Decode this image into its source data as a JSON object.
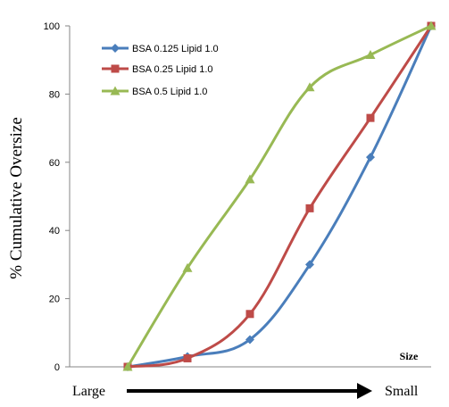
{
  "chart_data": {
    "type": "line",
    "x": [
      1,
      2,
      3,
      4,
      5,
      6
    ],
    "ylabel": "% Cumulative Oversize",
    "ylim": [
      0,
      100
    ],
    "yticks": [
      "0",
      "20",
      "40",
      "60",
      "80",
      "100"
    ],
    "size_label": "Size",
    "arrow_left_label": "Large",
    "arrow_right_label": "Small",
    "legend_position": "top-left",
    "grid": false,
    "series": [
      {
        "name": "BSA 0.125 Lipid 1.0",
        "color": "#4a7ebb",
        "marker": "diamond",
        "values": [
          0,
          3,
          8,
          30,
          61.5,
          100
        ]
      },
      {
        "name": "BSA 0.25 Lipid 1.0",
        "color": "#be4b48",
        "marker": "square",
        "values": [
          0,
          2.5,
          15.5,
          46.5,
          73,
          100
        ]
      },
      {
        "name": "BSA 0.5 Lipid 1.0",
        "color": "#98b954",
        "marker": "triangle",
        "values": [
          0,
          29,
          55,
          82,
          91.5,
          100
        ]
      }
    ]
  }
}
